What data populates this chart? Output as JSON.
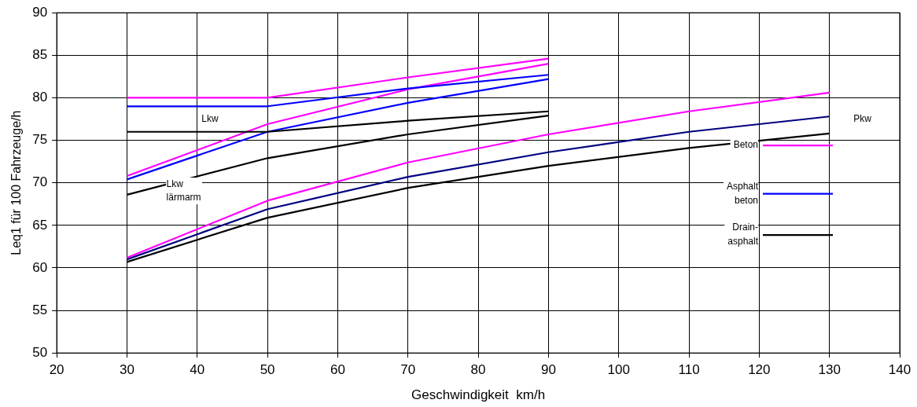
{
  "chart_data": {
    "type": "line",
    "xlabel": "Geschwindigkeit  km/h",
    "ylabel": "Leq1 für 100 Fahrzeuge/h",
    "xlim": [
      20,
      140
    ],
    "xticks": [
      20,
      30,
      40,
      50,
      60,
      70,
      80,
      90,
      100,
      110,
      120,
      130,
      140
    ],
    "ylim": [
      50,
      90
    ],
    "yticks": [
      50,
      55,
      60,
      65,
      70,
      75,
      80,
      85,
      90
    ],
    "grid": true,
    "legend": "right",
    "marker": "none",
    "line_style": "solid",
    "series": [
      {
        "name": "Beton",
        "color": "#ff00ff",
        "x": [
          30,
          50,
          70,
          90
        ],
        "values": [
          80,
          80,
          82.4,
          84.6
        ]
      },
      {
        "name": "Asphalt beton",
        "color": "#0000ff",
        "x": [
          30,
          50,
          70,
          90
        ],
        "values": [
          79,
          79,
          81.1,
          82.7
        ]
      },
      {
        "name": "Drain-asphalt",
        "color": "#000000",
        "x": [
          30,
          50,
          70,
          90
        ],
        "values": [
          76,
          76,
          77.3,
          78.4
        ]
      },
      {
        "color": "#ff00ff",
        "x": [
          30,
          50,
          70,
          90
        ],
        "values": [
          70.8,
          76.9,
          81.0,
          84.0
        ]
      },
      {
        "color": "#0000ff",
        "x": [
          30,
          50,
          70,
          90
        ],
        "values": [
          70.4,
          76,
          79.4,
          82.2
        ]
      },
      {
        "color": "#000000",
        "x": [
          30,
          50,
          70,
          90
        ],
        "values": [
          68.6,
          72.9,
          75.7,
          77.9
        ]
      },
      {
        "color": "#ff00ff",
        "x": [
          30,
          50,
          70,
          90,
          110,
          130
        ],
        "values": [
          61.2,
          67.9,
          72.4,
          75.7,
          78.4,
          80.6
        ]
      },
      {
        "color": "#000080",
        "x": [
          30,
          50,
          70,
          90,
          110,
          130
        ],
        "values": [
          61.0,
          66.9,
          70.7,
          73.6,
          76.0,
          77.8
        ]
      },
      {
        "color": "#000000",
        "x": [
          30,
          50,
          70,
          90,
          110,
          130
        ],
        "values": [
          60.7,
          65.9,
          69.4,
          72.0,
          74.1,
          75.8
        ]
      }
    ],
    "annotations": [
      "Lkw",
      "Lkw lärmarm",
      "Pkw"
    ]
  }
}
